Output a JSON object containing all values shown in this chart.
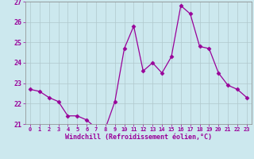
{
  "x": [
    0,
    1,
    2,
    3,
    4,
    5,
    6,
    7,
    8,
    9,
    10,
    11,
    12,
    13,
    14,
    15,
    16,
    17,
    18,
    19,
    20,
    21,
    22,
    23
  ],
  "y": [
    22.7,
    22.6,
    22.3,
    22.1,
    21.4,
    21.4,
    21.2,
    20.8,
    20.8,
    22.1,
    24.7,
    25.8,
    23.6,
    24.0,
    23.5,
    24.3,
    26.8,
    26.4,
    24.8,
    24.7,
    23.5,
    22.9,
    22.7,
    22.3
  ],
  "ylim": [
    21,
    27
  ],
  "yticks": [
    21,
    22,
    23,
    24,
    25,
    26,
    27
  ],
  "xlabel": "Windchill (Refroidissement éolien,°C)",
  "line_color": "#990099",
  "marker": "D",
  "marker_size": 2.5,
  "bg_color": "#cce8ee",
  "grid_color": "#b0c8cc",
  "tick_color": "#990099",
  "label_color": "#990099",
  "spine_color": "#888888"
}
